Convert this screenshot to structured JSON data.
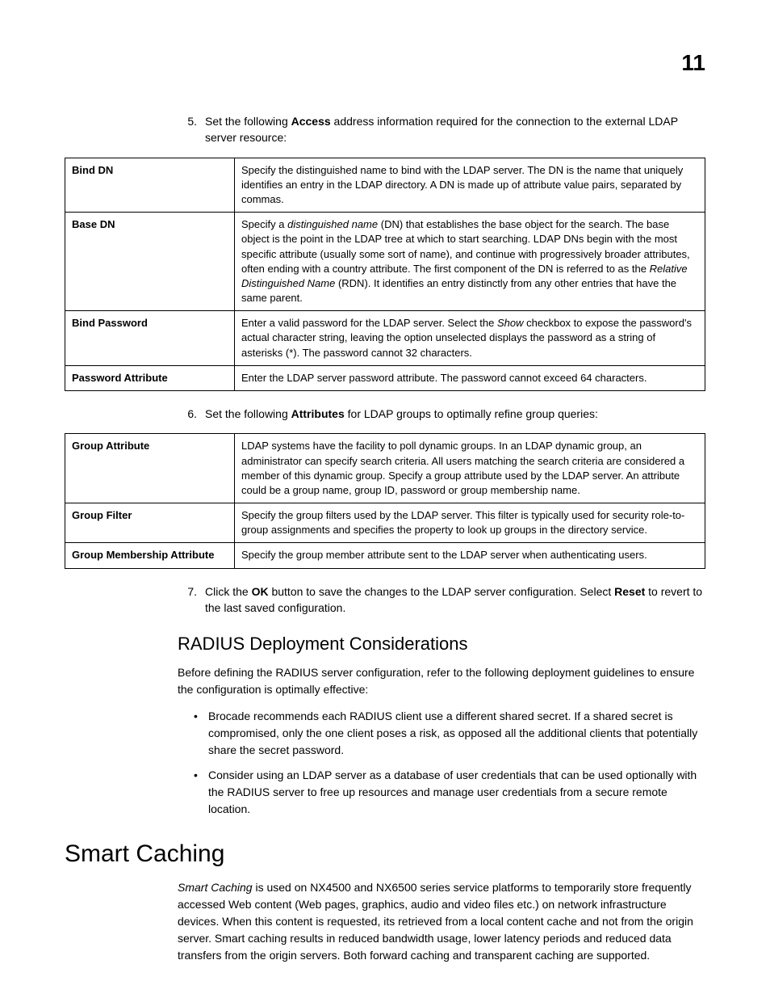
{
  "page_number": "11",
  "steps": {
    "s5": {
      "num": "5.",
      "pre": "Set the following ",
      "bold": "Access",
      "post": " address information required for the connection to the external LDAP server resource:"
    },
    "s6": {
      "num": "6.",
      "pre": "Set the following ",
      "bold": "Attributes",
      "post": " for LDAP groups to optimally refine group queries:"
    },
    "s7": {
      "num": "7.",
      "pre": "Click the ",
      "bold1": "OK",
      "mid": " button to save the changes to the LDAP server configuration. Select ",
      "bold2": "Reset",
      "post": " to revert to the last saved configuration."
    }
  },
  "table1": {
    "r0": {
      "label": "Bind DN",
      "desc": "Specify the distinguished name to bind with the LDAP server. The DN is the name that uniquely identifies an entry in the LDAP directory. A DN is made up of attribute value pairs, separated by commas."
    },
    "r1": {
      "label": "Base DN",
      "pre": "Specify a ",
      "it1": "distinguished name",
      "mid1": " (DN) that establishes the base object for the search. The base object is the point in the LDAP tree at which to start searching. LDAP DNs begin with the most specific attribute (usually some sort of name), and continue with progressively broader attributes, often ending with a country attribute. The first component of the DN is referred to as the ",
      "it2": "Relative Distinguished Name",
      "mid2": " (RDN). It identifies an entry distinctly from any other entries that have the same parent."
    },
    "r2": {
      "label": "Bind Password",
      "pre": "Enter a valid password for the LDAP server. Select the ",
      "it": "Show",
      "post": " checkbox to expose the password's actual character string, leaving the option unselected displays the password as a string of asterisks (*). The password cannot 32 characters."
    },
    "r3": {
      "label": "Password Attribute",
      "desc": "Enter the LDAP server password attribute. The password cannot exceed 64 characters."
    }
  },
  "table2": {
    "r0": {
      "label": "Group Attribute",
      "desc": "LDAP systems have the facility to poll dynamic groups. In an LDAP dynamic group, an administrator can specify search criteria. All users matching the search criteria are considered a member of this dynamic group. Specify a group attribute used by the LDAP server. An attribute could be a group name, group ID, password or group membership name."
    },
    "r1": {
      "label": "Group Filter",
      "desc": "Specify the group filters used by the LDAP server. This filter is typically used for security role-to-group assignments and specifies the property to look up groups in the directory service."
    },
    "r2": {
      "label": "Group Membership Attribute",
      "desc": "Specify the group member attribute sent to the LDAP server when authenticating users."
    }
  },
  "radius": {
    "heading": "RADIUS Deployment Considerations",
    "intro": "Before defining the RADIUS server configuration, refer to the following deployment guidelines to ensure the configuration is optimally effective:",
    "b1": "Brocade recommends each RADIUS client use a different shared secret. If a shared secret is compromised, only the one client poses a risk, as opposed all the additional clients that potentially share the secret password.",
    "b2": "Consider using an LDAP server as a database of user credentials that can be used optionally with the RADIUS server to free up resources and manage user credentials from a secure remote location."
  },
  "smart": {
    "heading": "Smart Caching",
    "it": "Smart Caching",
    "post": " is used on NX4500 and NX6500 series service platforms to temporarily store frequently accessed Web content (Web pages, graphics, audio and video files etc.) on network infrastructure devices. When this content is requested, its retrieved from a local content cache and not from the origin server. Smart caching results in reduced bandwidth usage, lower latency periods and reduced data transfers from the origin servers. Both forward caching and transparent caching are supported."
  }
}
